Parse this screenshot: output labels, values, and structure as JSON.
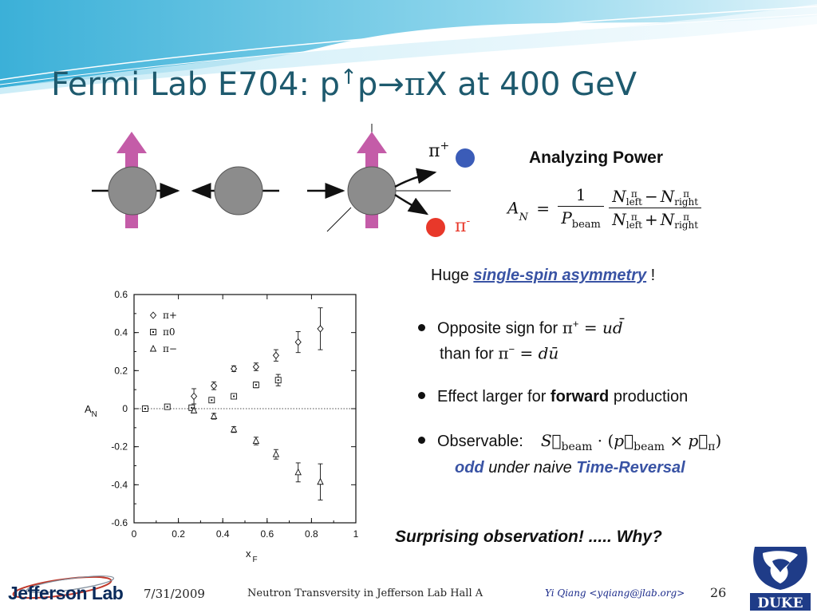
{
  "slide": {
    "title_part1": "Fermi Lab E704: p",
    "title_arrow": "↑",
    "title_part2": "p→",
    "title_pi": "π",
    "title_part3": "X at 400 GeV"
  },
  "diagram": {
    "pi_plus_label": "π",
    "pi_plus_sup": "+",
    "pi_minus_label": "π",
    "pi_minus_sup": "-",
    "colors": {
      "proton": "#8c8c8c",
      "spin_arrow": "#c45ca8",
      "pi_plus": "#3b5cb8",
      "pi_minus": "#e8382a"
    }
  },
  "analyzing_power": {
    "title": "Analyzing Power",
    "lhs": "A",
    "lhs_sub": "N",
    "equals": "=",
    "one": "1",
    "p": "P",
    "p_sub": "beam",
    "n": "N",
    "sup_pi": "π",
    "left": "left",
    "right": "right",
    "minus": "−",
    "plus": "+"
  },
  "text": {
    "huge_prefix": "Huge ",
    "huge_em": "single-spin asymmetry",
    "huge_suffix": " !",
    "b1_a": "Opposite sign for ",
    "b1_a_math": "π",
    "b1_a_sup": "+",
    "b1_a_rhs": " = ud̄",
    "b1_b": "than for ",
    "b1_b_math": "π",
    "b1_b_sup": "−",
    "b1_b_rhs": " = dū",
    "b2_a": "Effect larger for ",
    "b2_bold": "forward",
    "b2_b": " production",
    "b3_a": "Observable:",
    "b3_math": "S⃗",
    "b3_sub1": "beam",
    "b3_mid": " · (",
    "b3_p1": "p⃗",
    "b3_sub2": "beam",
    "b3_times": " × ",
    "b3_p2": "p⃗",
    "b3_sub3": "π",
    "b3_close": ")",
    "odd_a": "odd",
    "odd_b": " under naive ",
    "odd_c": "Time-Reversal",
    "surprising": "Surprising observation! ..... Why?"
  },
  "chart_data": {
    "type": "scatter",
    "xlabel": "x",
    "xlabel_sub": "F",
    "ylabel": "A",
    "ylabel_sub": "N",
    "xlim": [
      0,
      1
    ],
    "ylim": [
      -0.6,
      0.6
    ],
    "xticks": [
      "0",
      "0.2",
      "0.4",
      "0.6",
      "0.8",
      "1"
    ],
    "yticks": [
      "0.6",
      "0.4",
      "0.2",
      "0",
      "-0.2",
      "-0.4",
      "-0.6"
    ],
    "zero_line": "dotted",
    "series": [
      {
        "name": "π+",
        "marker": "diamond",
        "points": [
          {
            "x": 0.27,
            "y": 0.065,
            "err": 0.04
          },
          {
            "x": 0.36,
            "y": 0.12,
            "err": 0.02
          },
          {
            "x": 0.45,
            "y": 0.21,
            "err": 0.015
          },
          {
            "x": 0.55,
            "y": 0.22,
            "err": 0.02
          },
          {
            "x": 0.64,
            "y": 0.28,
            "err": 0.03
          },
          {
            "x": 0.74,
            "y": 0.35,
            "err": 0.055
          },
          {
            "x": 0.84,
            "y": 0.42,
            "err": 0.11
          }
        ]
      },
      {
        "name": "π0",
        "marker": "square",
        "points": [
          {
            "x": 0.05,
            "y": 0.0,
            "err": 0.01
          },
          {
            "x": 0.15,
            "y": 0.01,
            "err": 0.01
          },
          {
            "x": 0.26,
            "y": 0.005,
            "err": 0.01
          },
          {
            "x": 0.35,
            "y": 0.045,
            "err": 0.01
          },
          {
            "x": 0.45,
            "y": 0.065,
            "err": 0.01
          },
          {
            "x": 0.55,
            "y": 0.125,
            "err": 0.015
          },
          {
            "x": 0.65,
            "y": 0.15,
            "err": 0.03
          }
        ]
      },
      {
        "name": "π−",
        "marker": "triangle",
        "points": [
          {
            "x": 0.27,
            "y": -0.01,
            "err": 0.01
          },
          {
            "x": 0.36,
            "y": -0.04,
            "err": 0.015
          },
          {
            "x": 0.45,
            "y": -0.11,
            "err": 0.015
          },
          {
            "x": 0.55,
            "y": -0.17,
            "err": 0.02
          },
          {
            "x": 0.64,
            "y": -0.24,
            "err": 0.025
          },
          {
            "x": 0.74,
            "y": -0.335,
            "err": 0.05
          },
          {
            "x": 0.84,
            "y": -0.385,
            "err": 0.095
          }
        ]
      }
    ],
    "legend_placement": "top-left"
  },
  "footer": {
    "date": "7/31/2009",
    "title": "Neutron Transversity in Jefferson Lab Hall A",
    "author": "Yi Qiang <yqiang@jlab.org>",
    "page": "26",
    "left_logo": "Jefferson Lab",
    "right_logo": "DUKE"
  }
}
